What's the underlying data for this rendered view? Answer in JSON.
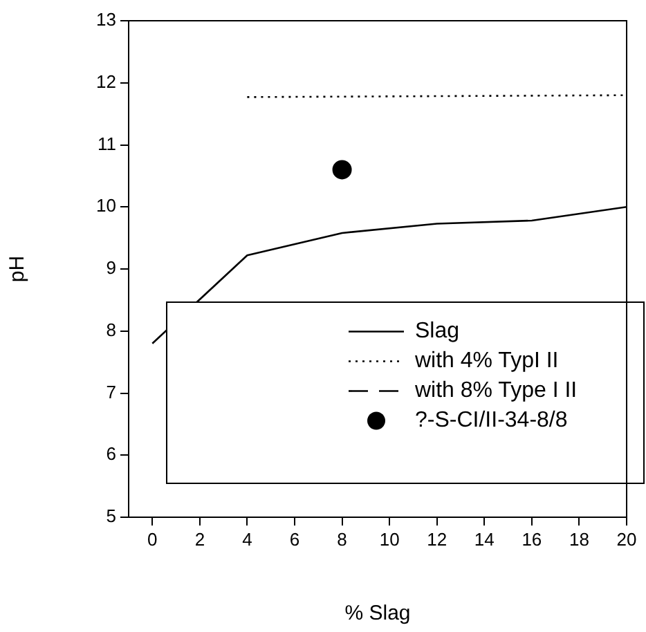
{
  "chart_data": {
    "type": "line",
    "xlabel": "% Slag",
    "ylabel": "pH",
    "xlim": [
      -1,
      20
    ],
    "ylim": [
      5,
      13
    ],
    "xticks": [
      0,
      2,
      4,
      6,
      8,
      10,
      12,
      14,
      16,
      18,
      20
    ],
    "yticks": [
      5,
      6,
      7,
      8,
      9,
      10,
      11,
      12,
      13
    ],
    "grid": false,
    "legend": "bottom right",
    "series": [
      {
        "name": "Slag",
        "color": "#000000",
        "line_style": "solid",
        "marker": "none",
        "x": [
          0,
          4,
          8,
          12,
          16,
          20
        ],
        "values": [
          7.8,
          9.22,
          9.58,
          9.73,
          9.78,
          10.0
        ]
      },
      {
        "name": "with 4% TypI II",
        "color": "#000000",
        "line_style": "dotted",
        "marker": "none",
        "x": [
          4,
          20
        ],
        "values": [
          11.77,
          11.8
        ]
      },
      {
        "name": "with 8% Type I II",
        "color": "#000000",
        "line_style": "dashed",
        "marker": "none"
      },
      {
        "name": "?-S-CI/II-34-8/8",
        "type": "scatter",
        "color": "#000000",
        "marker": "circle",
        "x": [
          8
        ],
        "values": [
          10.6
        ]
      }
    ]
  }
}
